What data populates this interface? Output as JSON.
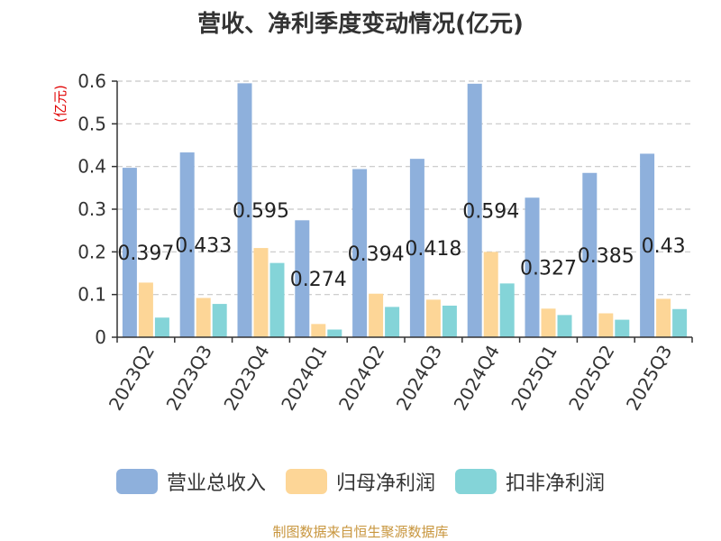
{
  "chart_data": {
    "type": "bar",
    "title": "营收、净利季度变动情况(亿元)",
    "ylabel": "(亿元)",
    "xlabel": "",
    "ylim": [
      0,
      0.6
    ],
    "yticks": [
      "0",
      "0.1",
      "0.2",
      "0.3",
      "0.4",
      "0.5",
      "0.6"
    ],
    "grid": true,
    "legend_position": "bottom",
    "categories": [
      "2023Q2",
      "2023Q3",
      "2023Q4",
      "2024Q1",
      "2024Q2",
      "2024Q3",
      "2024Q4",
      "2025Q1",
      "2025Q2",
      "2025Q3"
    ],
    "series": [
      {
        "name": "营业总收入",
        "color": "#8eb0dc",
        "values": [
          0.397,
          0.433,
          0.595,
          0.274,
          0.394,
          0.418,
          0.594,
          0.327,
          0.385,
          0.43
        ],
        "labels": [
          "0.397",
          "0.433",
          "0.595",
          "0.274",
          "0.394",
          "0.418",
          "0.594",
          "0.327",
          "0.385",
          "0.43"
        ]
      },
      {
        "name": "归母净利润",
        "color": "#fdd697",
        "values": [
          0.128,
          0.092,
          0.209,
          0.031,
          0.102,
          0.088,
          0.2,
          0.067,
          0.056,
          0.09
        ]
      },
      {
        "name": "扣非净利润",
        "color": "#84d4d8",
        "values": [
          0.046,
          0.078,
          0.174,
          0.018,
          0.071,
          0.074,
          0.126,
          0.052,
          0.041,
          0.066
        ]
      }
    ]
  },
  "source_text": "制图数据来自恒生聚源数据库"
}
